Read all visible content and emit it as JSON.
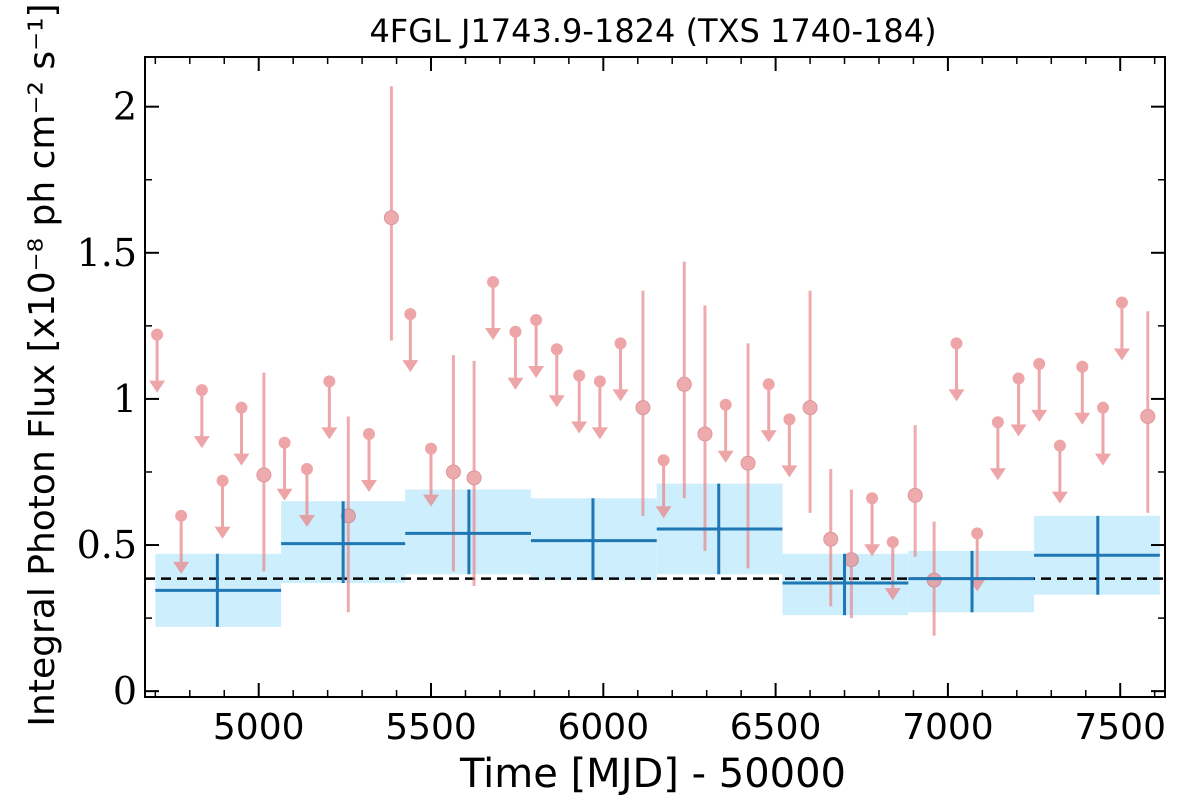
{
  "chart_data": {
    "type": "scatter",
    "title": "4FGL J1743.9-1824 (TXS 1740-184)",
    "xlabel": "Time [MJD] - 50000",
    "ylabel": "Integral Photon Flux [x10⁻⁸ ph cm⁻² s⁻¹]",
    "xlim": [
      4670,
      7630
    ],
    "ylim": [
      -0.02,
      2.17
    ],
    "x_ticks": [
      5000,
      5500,
      6000,
      6500,
      7000,
      7500
    ],
    "x_tick_labels": [
      "5000",
      "5500",
      "6000",
      "6500",
      "7000",
      "7500"
    ],
    "y_ticks": [
      0,
      0.5,
      1,
      1.5,
      2
    ],
    "y_tick_labels": [
      "0",
      "0.5",
      "1",
      "1.5",
      "2"
    ],
    "mean_flux": 0.385,
    "colors": {
      "short_bins": "#e8888b",
      "long_bins": "#1f77b4",
      "long_bin_band": "#cdeefd",
      "mean_line": "#000000"
    },
    "series": [
      {
        "kind": "short-bin-detections",
        "points": [
          {
            "x": 5015,
            "y": 0.74,
            "lo": 0.41,
            "hi": 1.09
          },
          {
            "x": 5260,
            "y": 0.6,
            "lo": 0.27,
            "hi": 0.94
          },
          {
            "x": 5385,
            "y": 1.62,
            "lo": 1.2,
            "hi": 2.07
          },
          {
            "x": 5565,
            "y": 0.75,
            "lo": 0.41,
            "hi": 1.15
          },
          {
            "x": 5625,
            "y": 0.73,
            "lo": 0.36,
            "hi": 1.13
          },
          {
            "x": 6115,
            "y": 0.97,
            "lo": 0.6,
            "hi": 1.37
          },
          {
            "x": 6235,
            "y": 1.05,
            "lo": 0.66,
            "hi": 1.47
          },
          {
            "x": 6295,
            "y": 0.88,
            "lo": 0.48,
            "hi": 1.32
          },
          {
            "x": 6420,
            "y": 0.78,
            "lo": 0.42,
            "hi": 1.19
          },
          {
            "x": 6600,
            "y": 0.97,
            "lo": 0.61,
            "hi": 1.37
          },
          {
            "x": 6660,
            "y": 0.52,
            "lo": 0.29,
            "hi": 0.76
          },
          {
            "x": 6720,
            "y": 0.45,
            "lo": 0.25,
            "hi": 0.69
          },
          {
            "x": 6905,
            "y": 0.67,
            "lo": 0.46,
            "hi": 0.91
          },
          {
            "x": 6960,
            "y": 0.38,
            "lo": 0.19,
            "hi": 0.58
          },
          {
            "x": 7580,
            "y": 0.94,
            "lo": 0.61,
            "hi": 1.3
          }
        ]
      },
      {
        "kind": "short-bin-upper-limits",
        "points": [
          {
            "x": 4705,
            "y": 1.22
          },
          {
            "x": 4775,
            "y": 0.6
          },
          {
            "x": 4835,
            "y": 1.03
          },
          {
            "x": 4895,
            "y": 0.72
          },
          {
            "x": 4950,
            "y": 0.97
          },
          {
            "x": 5075,
            "y": 0.85
          },
          {
            "x": 5140,
            "y": 0.76
          },
          {
            "x": 5205,
            "y": 1.06
          },
          {
            "x": 5320,
            "y": 0.88
          },
          {
            "x": 5440,
            "y": 1.29
          },
          {
            "x": 5500,
            "y": 0.83
          },
          {
            "x": 5680,
            "y": 1.4
          },
          {
            "x": 5745,
            "y": 1.23
          },
          {
            "x": 5805,
            "y": 1.27
          },
          {
            "x": 5865,
            "y": 1.17
          },
          {
            "x": 5930,
            "y": 1.08
          },
          {
            "x": 5990,
            "y": 1.06
          },
          {
            "x": 6050,
            "y": 1.19
          },
          {
            "x": 6175,
            "y": 0.79
          },
          {
            "x": 6355,
            "y": 0.98
          },
          {
            "x": 6480,
            "y": 1.05
          },
          {
            "x": 6540,
            "y": 0.93
          },
          {
            "x": 6780,
            "y": 0.66
          },
          {
            "x": 6840,
            "y": 0.51
          },
          {
            "x": 7025,
            "y": 1.19
          },
          {
            "x": 7085,
            "y": 0.54
          },
          {
            "x": 7145,
            "y": 0.92
          },
          {
            "x": 7205,
            "y": 1.07
          },
          {
            "x": 7265,
            "y": 1.12
          },
          {
            "x": 7325,
            "y": 0.84
          },
          {
            "x": 7390,
            "y": 1.11
          },
          {
            "x": 7450,
            "y": 0.97
          },
          {
            "x": 7505,
            "y": 1.33
          }
        ]
      },
      {
        "kind": "long-bins",
        "bins": [
          {
            "x0": 4700,
            "x1": 5065,
            "xc": 4880,
            "y": 0.345,
            "lo": 0.22,
            "hi": 0.47
          },
          {
            "x0": 5065,
            "x1": 5425,
            "xc": 5245,
            "y": 0.505,
            "lo": 0.37,
            "hi": 0.65
          },
          {
            "x0": 5425,
            "x1": 5790,
            "xc": 5610,
            "y": 0.54,
            "lo": 0.4,
            "hi": 0.69
          },
          {
            "x0": 5790,
            "x1": 6155,
            "xc": 5970,
            "y": 0.515,
            "lo": 0.38,
            "hi": 0.66
          },
          {
            "x0": 6155,
            "x1": 6520,
            "xc": 6335,
            "y": 0.555,
            "lo": 0.4,
            "hi": 0.71
          },
          {
            "x0": 6520,
            "x1": 6885,
            "xc": 6700,
            "y": 0.37,
            "lo": 0.26,
            "hi": 0.47
          },
          {
            "x0": 6885,
            "x1": 7250,
            "xc": 7070,
            "y": 0.385,
            "lo": 0.27,
            "hi": 0.48
          },
          {
            "x0": 7250,
            "x1": 7615,
            "xc": 7435,
            "y": 0.465,
            "lo": 0.33,
            "hi": 0.6
          }
        ]
      }
    ]
  }
}
